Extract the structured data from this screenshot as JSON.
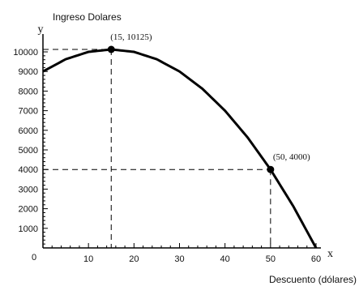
{
  "chart_data": {
    "type": "line",
    "ylabel": "Ingreso Dolares",
    "xlabel": "Descuento (dólares)",
    "x_axis_var": "x",
    "y_axis_var": "y",
    "origin_label": "0",
    "xlim": [
      0,
      60
    ],
    "ylim": [
      0,
      10125
    ],
    "x_ticks": [
      10,
      20,
      30,
      40,
      50,
      60
    ],
    "x_tick_labels": [
      "10",
      "20",
      "30",
      "40",
      "50",
      "60"
    ],
    "y_ticks": [
      1000,
      2000,
      3000,
      4000,
      5000,
      6000,
      7000,
      8000,
      9000,
      10000
    ],
    "y_tick_labels": [
      "1000",
      "2000",
      "3000",
      "4000",
      "5000",
      "6000",
      "7000",
      "8000",
      "9000",
      "10000"
    ],
    "grid": false,
    "series": [
      {
        "x": [
          0,
          5,
          10,
          15,
          20,
          25,
          30,
          35,
          40,
          45,
          50,
          55,
          60
        ],
        "y": [
          9000,
          9625,
          10000,
          10125,
          10000,
          9625,
          9000,
          8125,
          7000,
          5625,
          4000,
          2125,
          0
        ]
      }
    ],
    "points": [
      {
        "x": 15,
        "y": 10125,
        "label": "(15, 10125)"
      },
      {
        "x": 50,
        "y": 4000,
        "label": "(50, 4000)"
      }
    ],
    "color": "#000000"
  }
}
